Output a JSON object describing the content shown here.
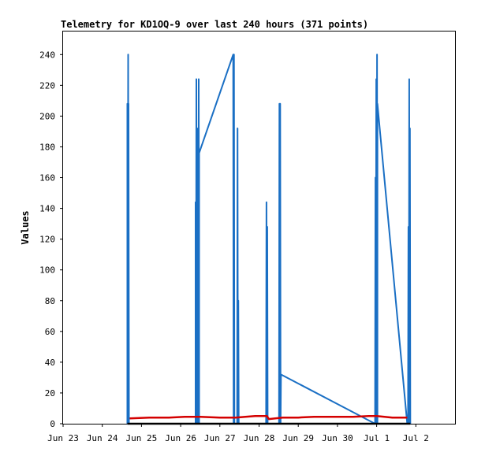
{
  "chart_data": {
    "type": "line",
    "title": "Telemetry for KD1OQ-9 over last 240 hours (371 points)",
    "xlabel": "",
    "ylabel": "Values",
    "xlim": [
      0,
      10
    ],
    "ylim": [
      0,
      255
    ],
    "x_ticks": [
      {
        "pos": 0,
        "label": "Jun 23"
      },
      {
        "pos": 1,
        "label": "Jun 24"
      },
      {
        "pos": 2,
        "label": "Jun 25"
      },
      {
        "pos": 3,
        "label": "Jun 26"
      },
      {
        "pos": 4,
        "label": "Jun 27"
      },
      {
        "pos": 5,
        "label": "Jun 28"
      },
      {
        "pos": 6,
        "label": "Jun 29"
      },
      {
        "pos": 7,
        "label": "Jun 30"
      },
      {
        "pos": 8,
        "label": "Jul 1"
      },
      {
        "pos": 9,
        "label": "Jul 2"
      }
    ],
    "y_ticks": [
      0,
      20,
      40,
      60,
      80,
      100,
      120,
      140,
      160,
      180,
      200,
      220,
      240
    ],
    "grid": false,
    "series": [
      {
        "color": "#1a6fc4",
        "points": [
          [
            1.64,
            0
          ],
          [
            1.64,
            208
          ],
          [
            1.65,
            0
          ],
          [
            1.66,
            240
          ],
          [
            1.67,
            0
          ],
          [
            1.67,
            208
          ],
          [
            1.68,
            0
          ],
          [
            3.38,
            0
          ],
          [
            3.38,
            144
          ],
          [
            3.39,
            0
          ],
          [
            3.4,
            224
          ],
          [
            3.41,
            0
          ],
          [
            3.42,
            132
          ],
          [
            3.43,
            0
          ],
          [
            3.44,
            192
          ],
          [
            3.45,
            0
          ],
          [
            3.46,
            224
          ],
          [
            3.47,
            0
          ],
          [
            3.47,
            176
          ],
          [
            4.34,
            240
          ],
          [
            4.35,
            0
          ],
          [
            4.36,
            240
          ],
          [
            4.37,
            0
          ],
          [
            4.44,
            0
          ],
          [
            4.45,
            192
          ],
          [
            4.46,
            0
          ],
          [
            4.47,
            80
          ],
          [
            4.48,
            0
          ],
          [
            5.18,
            0
          ],
          [
            5.19,
            144
          ],
          [
            5.2,
            0
          ],
          [
            5.21,
            128
          ],
          [
            5.22,
            0
          ],
          [
            5.51,
            0
          ],
          [
            5.52,
            208
          ],
          [
            5.53,
            0
          ],
          [
            5.54,
            208
          ],
          [
            5.55,
            0
          ],
          [
            5.56,
            32
          ],
          [
            7.96,
            0
          ],
          [
            7.97,
            160
          ],
          [
            7.98,
            0
          ],
          [
            7.99,
            224
          ],
          [
            8.0,
            0
          ],
          [
            8.01,
            240
          ],
          [
            8.02,
            0
          ],
          [
            8.02,
            208
          ],
          [
            8.78,
            0
          ],
          [
            8.8,
            0
          ],
          [
            8.81,
            128
          ],
          [
            8.82,
            0
          ],
          [
            8.83,
            224
          ],
          [
            8.84,
            0
          ],
          [
            8.85,
            192
          ],
          [
            8.86,
            0
          ]
        ]
      },
      {
        "color": "#d40000",
        "points": [
          [
            1.7,
            3.5
          ],
          [
            2.2,
            4
          ],
          [
            2.7,
            4
          ],
          [
            3.1,
            4.5
          ],
          [
            3.5,
            4.5
          ],
          [
            4.0,
            4
          ],
          [
            4.4,
            4
          ],
          [
            4.9,
            5
          ],
          [
            5.2,
            5
          ],
          [
            5.25,
            3
          ],
          [
            5.6,
            4
          ],
          [
            6.0,
            4
          ],
          [
            6.4,
            4.5
          ],
          [
            7.0,
            4.5
          ],
          [
            7.4,
            4.5
          ],
          [
            7.8,
            5
          ],
          [
            8.0,
            5
          ],
          [
            8.4,
            4
          ],
          [
            8.78,
            4
          ]
        ]
      },
      {
        "color": "#000000",
        "points": [
          [
            1.64,
            0
          ],
          [
            8.86,
            0
          ]
        ]
      }
    ]
  }
}
